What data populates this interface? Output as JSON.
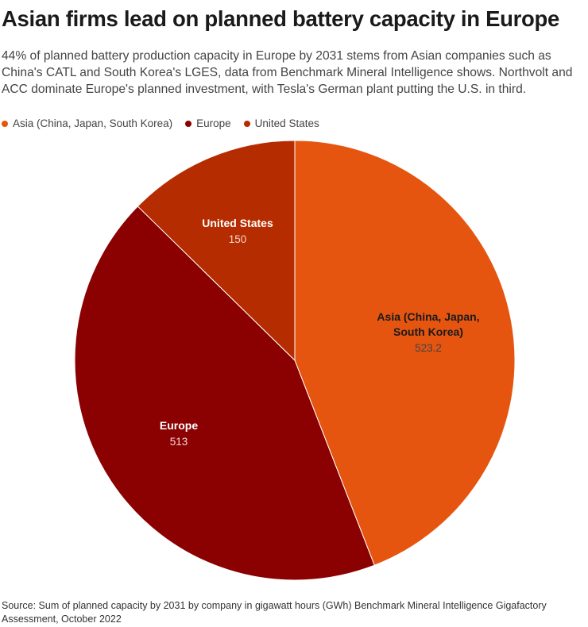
{
  "title": "Asian firms lead on planned battery capacity in Europe",
  "subtitle": "44% of planned battery production capacity in Europe by 2031 stems from Asian companies such as China's CATL and South Korea's LGES, data from Benchmark Mineral Intelligence shows. Northvolt and ACC dominate Europe's planned investment, with Tesla's German plant putting the U.S. in third.",
  "source": "Source: Sum of planned capacity by 2031 by company in gigawatt hours (GWh) Benchmark Mineral Intelligence Gigafactory Assessment, October 2022",
  "legend": [
    {
      "label": "Asia (China, Japan, South Korea)",
      "color": "#e55510"
    },
    {
      "label": "Europe",
      "color": "#8b0000"
    },
    {
      "label": "United States",
      "color": "#b52c00"
    }
  ],
  "chart_data": {
    "type": "pie",
    "title": "Asian firms lead on planned battery capacity in Europe",
    "start": "top, clockwise",
    "slices": [
      {
        "name": "Asia (China, Japan, South Korea)",
        "label_lines": [
          "Asia (China, Japan,",
          "South Korea)"
        ],
        "value": 523.2,
        "value_label": "523.2",
        "color": "#e55510",
        "label_color": "#1a1a1a",
        "value_color": "#444444"
      },
      {
        "name": "Europe",
        "label_lines": [
          "Europe"
        ],
        "value": 513,
        "value_label": "513",
        "color": "#8b0000",
        "label_color": "#ffffff",
        "value_color": "#f3d6d6"
      },
      {
        "name": "United States",
        "label_lines": [
          "United States"
        ],
        "value": 150,
        "value_label": "150",
        "color": "#b52c00",
        "label_color": "#ffffff",
        "value_color": "#f6d3c6"
      }
    ]
  }
}
